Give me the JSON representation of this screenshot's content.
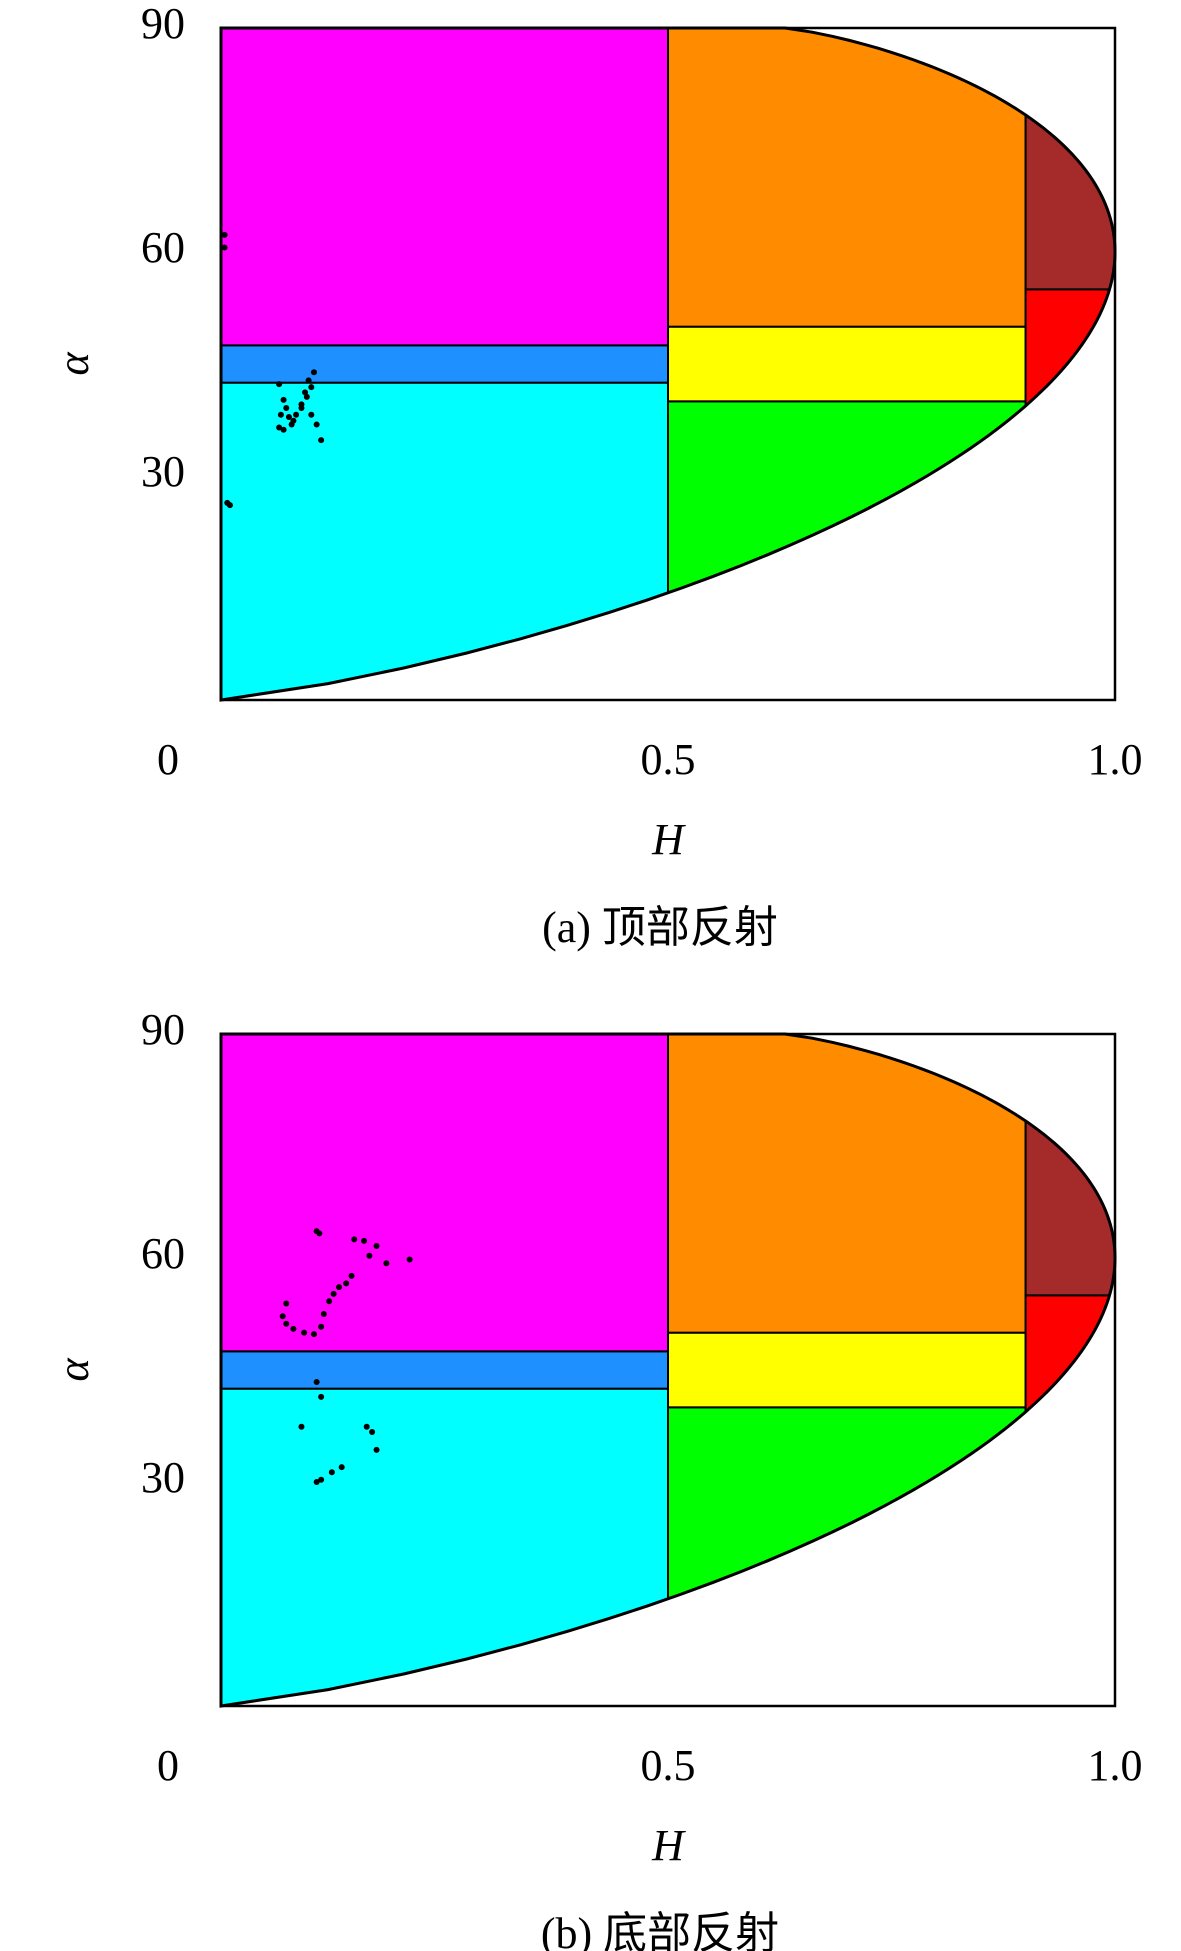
{
  "chart_data": [
    {
      "type": "scatter",
      "caption": "(a) 顶部反射",
      "xlabel": "H",
      "ylabel": "α",
      "xlim": [
        0,
        1
      ],
      "ylim": [
        0,
        90
      ],
      "xticks": [
        0,
        0.5,
        {
          "value": 1,
          "label": "1.0"
        }
      ],
      "yticks": [
        30,
        60,
        90
      ],
      "marker_color": "#000000",
      "zones": [
        {
          "color": "#00ffff",
          "H": [
            0,
            0.5
          ],
          "alpha": [
            0,
            42.5
          ]
        },
        {
          "color": "#1e90ff",
          "H": [
            0,
            0.5
          ],
          "alpha": [
            42.5,
            47.5
          ]
        },
        {
          "color": "#ff00ff",
          "H": [
            0,
            0.5
          ],
          "alpha": [
            47.5,
            90
          ]
        },
        {
          "color": "#00ff00",
          "H": [
            0.5,
            0.9
          ],
          "alpha": [
            0,
            40
          ]
        },
        {
          "color": "#ffff00",
          "H": [
            0.5,
            0.9
          ],
          "alpha": [
            40,
            50
          ]
        },
        {
          "color": "#ff8c00",
          "H": [
            0.5,
            0.9
          ],
          "alpha": [
            50,
            90
          ]
        },
        {
          "color": "#ff0000",
          "H": [
            0.9,
            1
          ],
          "alpha": [
            0,
            55
          ]
        },
        {
          "color": "#a52a2a",
          "H": [
            0.9,
            1
          ],
          "alpha": [
            55,
            90
          ]
        }
      ],
      "x": [
        0.004,
        0.004,
        0.007,
        0.01,
        0.065,
        0.07,
        0.073,
        0.076,
        0.065,
        0.07,
        0.079,
        0.084,
        0.09,
        0.096,
        0.101,
        0.104,
        0.098,
        0.09,
        0.101,
        0.107,
        0.112,
        0.081,
        0.094,
        0.067
      ],
      "y": [
        62.3,
        60.6,
        26.4,
        26.1,
        42.3,
        40.2,
        39.1,
        37.9,
        36.5,
        36.2,
        36.9,
        38.2,
        39.6,
        40.6,
        41.9,
        43.9,
        42.8,
        39.1,
        38.2,
        36.9,
        34.8,
        37.4,
        41.2,
        38.2
      ]
    },
    {
      "type": "scatter",
      "caption": "(b) 底部反射",
      "xlabel": "H",
      "ylabel": "α",
      "xlim": [
        0,
        1
      ],
      "ylim": [
        0,
        90
      ],
      "xticks": [
        0,
        0.5,
        {
          "value": 1,
          "label": "1.0"
        }
      ],
      "yticks": [
        30,
        60,
        90
      ],
      "marker_color": "#000000",
      "zones": [
        {
          "color": "#00ffff",
          "H": [
            0,
            0.5
          ],
          "alpha": [
            0,
            42.5
          ]
        },
        {
          "color": "#1e90ff",
          "H": [
            0,
            0.5
          ],
          "alpha": [
            42.5,
            47.5
          ]
        },
        {
          "color": "#ff00ff",
          "H": [
            0,
            0.5
          ],
          "alpha": [
            47.5,
            90
          ]
        },
        {
          "color": "#00ff00",
          "H": [
            0.5,
            0.9
          ],
          "alpha": [
            0,
            40
          ]
        },
        {
          "color": "#ffff00",
          "H": [
            0.5,
            0.9
          ],
          "alpha": [
            40,
            50
          ]
        },
        {
          "color": "#ff8c00",
          "H": [
            0.5,
            0.9
          ],
          "alpha": [
            50,
            90
          ]
        },
        {
          "color": "#ff0000",
          "H": [
            0.9,
            1
          ],
          "alpha": [
            0,
            55
          ]
        },
        {
          "color": "#a52a2a",
          "H": [
            0.9,
            1
          ],
          "alpha": [
            55,
            90
          ]
        }
      ],
      "x": [
        0.107,
        0.11,
        0.149,
        0.16,
        0.174,
        0.211,
        0.185,
        0.166,
        0.146,
        0.14,
        0.132,
        0.126,
        0.121,
        0.115,
        0.112,
        0.073,
        0.069,
        0.073,
        0.081,
        0.093,
        0.104,
        0.107,
        0.112,
        0.09,
        0.163,
        0.169,
        0.174,
        0.107,
        0.112,
        0.124,
        0.135
      ],
      "y": [
        63.6,
        63.3,
        62.5,
        62.3,
        61.6,
        59.8,
        59.3,
        60.3,
        57.6,
        56.6,
        56.1,
        55.2,
        54.2,
        52.5,
        50.8,
        53.9,
        52.2,
        51.2,
        50.5,
        50.0,
        49.8,
        43.4,
        41.4,
        37.4,
        37.4,
        36.7,
        34.3,
        30.0,
        30.3,
        31.3,
        32.0
      ]
    }
  ]
}
